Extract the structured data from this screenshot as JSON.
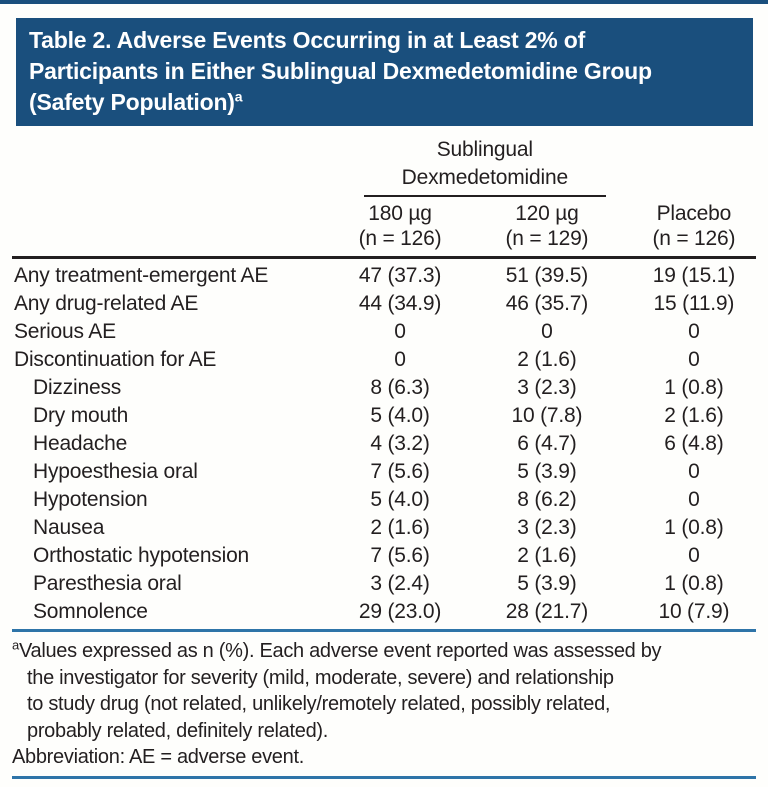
{
  "title": {
    "line1": "Table 2. Adverse Events Occurring in at Least 2% of",
    "line2": "Participants in Either Sublingual Dexmedetomidine Group",
    "line3": "(Safety Population)",
    "superscript": "a"
  },
  "table": {
    "spanner": {
      "line1": "Sublingual",
      "line2": "Dexmedetomidine"
    },
    "columns": [
      {
        "dose": "180 µg",
        "n": "(n = 126)"
      },
      {
        "dose": "120 µg",
        "n": "(n = 129)"
      },
      {
        "dose": "Placebo",
        "n": "(n = 126)"
      }
    ],
    "rows": [
      {
        "label": "Any treatment-emergent AE",
        "indent": false,
        "v180": "47 (37.3)",
        "v120": "51 (39.5)",
        "placebo": "19 (15.1)"
      },
      {
        "label": "Any drug-related AE",
        "indent": false,
        "v180": "44 (34.9)",
        "v120": "46 (35.7)",
        "placebo": "15 (11.9)"
      },
      {
        "label": "Serious AE",
        "indent": false,
        "v180": "0",
        "v120": "0",
        "placebo": "0"
      },
      {
        "label": "Discontinuation for AE",
        "indent": false,
        "v180": "0",
        "v120": "2 (1.6)",
        "placebo": "0"
      },
      {
        "label": "Dizziness",
        "indent": true,
        "v180": "8 (6.3)",
        "v120": "3 (2.3)",
        "placebo": "1 (0.8)"
      },
      {
        "label": "Dry mouth",
        "indent": true,
        "v180": "5 (4.0)",
        "v120": "10 (7.8)",
        "placebo": "2 (1.6)"
      },
      {
        "label": "Headache",
        "indent": true,
        "v180": "4 (3.2)",
        "v120": "6 (4.7)",
        "placebo": "6 (4.8)"
      },
      {
        "label": "Hypoesthesia oral",
        "indent": true,
        "v180": "7 (5.6)",
        "v120": "5 (3.9)",
        "placebo": "0"
      },
      {
        "label": "Hypotension",
        "indent": true,
        "v180": "5 (4.0)",
        "v120": "8 (6.2)",
        "placebo": "0"
      },
      {
        "label": "Nausea",
        "indent": true,
        "v180": "2 (1.6)",
        "v120": "3 (2.3)",
        "placebo": "1 (0.8)"
      },
      {
        "label": "Orthostatic hypotension",
        "indent": true,
        "v180": "7 (5.6)",
        "v120": "2 (1.6)",
        "placebo": "0"
      },
      {
        "label": "Paresthesia oral",
        "indent": true,
        "v180": "3 (2.4)",
        "v120": "5 (3.9)",
        "placebo": "1 (0.8)"
      },
      {
        "label": "Somnolence",
        "indent": true,
        "v180": "29 (23.0)",
        "v120": "28 (21.7)",
        "placebo": "10 (7.9)"
      }
    ]
  },
  "footnote": {
    "marker": "a",
    "lines": [
      "Values expressed as n (%). Each adverse event reported was assessed by",
      "the investigator for severity (mild, moderate, severe) and relationship",
      "to study drug (not related, unlikely/remotely related, possibly related,",
      "probably related, definitely related)."
    ],
    "abbreviation": "Abbreviation: AE = adverse event."
  },
  "colors": {
    "navy": "#1a4f7d",
    "rule_blue": "#2e74a8",
    "text": "#231f20"
  }
}
